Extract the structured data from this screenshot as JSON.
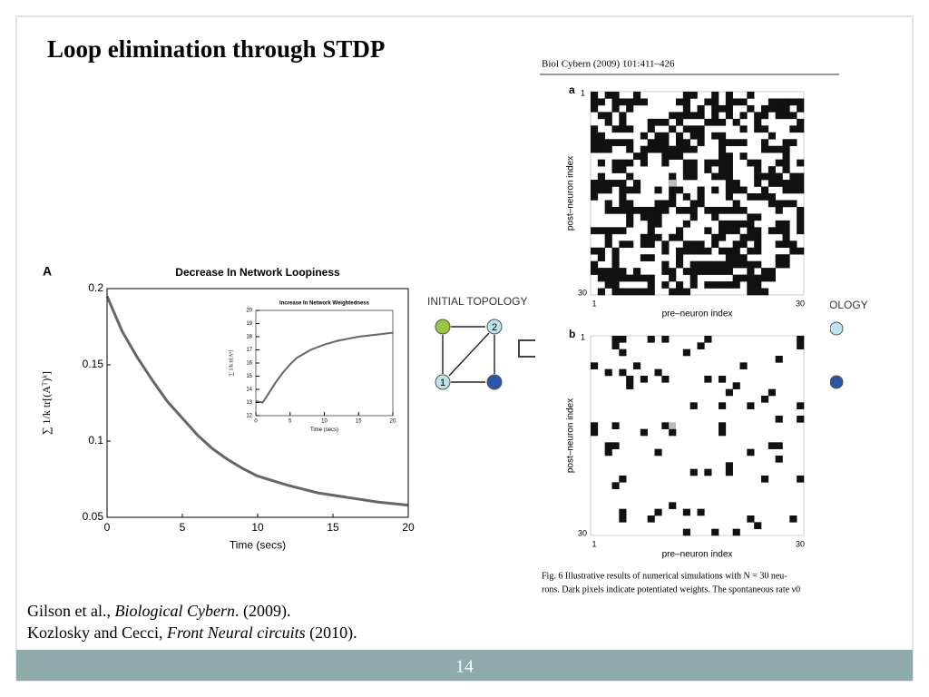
{
  "slide": {
    "title": "Loop elimination through STDP",
    "panel_label": "A",
    "journal_header": "Biol Cybern (2009) 101:411–426",
    "matrix_a": {
      "label": "a",
      "ylabel": "post–neuron index",
      "xlabel": "pre–neuron index",
      "tick_start": "1",
      "tick_end": "30",
      "tick_start_y": "1",
      "tick_end_y": "30"
    },
    "matrix_b": {
      "label": "b",
      "ylabel": "post–neuron index",
      "xlabel": "pre–neuron index",
      "tick_start": "1",
      "tick_end": "30",
      "tick_start_y": "1",
      "tick_end_y": "30"
    },
    "caption": [
      "Fig. 6  Illustrative results of numerical simulations with N = 30 neu-",
      "rons. Dark pixels indicate potentiated weights. The spontaneous rate ν0"
    ],
    "topology": {
      "title": "INITIAL TOPOLOGY",
      "node_1": "1",
      "node_2": "2",
      "cut_title": "OLOGY"
    },
    "references": [
      {
        "authors": "Gilson et al., ",
        "journal": "Biological Cybern",
        "rest": ". (2009)."
      },
      {
        "authors": "Kozlosky and Cecci, ",
        "journal": "Front Neural circuits",
        "rest": " (2010)."
      }
    ],
    "page_number": "14"
  },
  "chart_data": [
    {
      "type": "line",
      "title": "Decrease In Network Loopiness",
      "xlabel": "Time (secs)",
      "ylabel": "∑ 1/k tr[(Aᵀ)ᵏ]",
      "x": [
        0,
        1,
        2,
        3,
        4,
        5,
        6,
        7,
        8,
        9,
        10,
        12,
        14,
        16,
        18,
        20
      ],
      "series": [
        {
          "color": "#333333",
          "values": [
            0.195,
            0.172,
            0.155,
            0.14,
            0.126,
            0.115,
            0.104,
            0.095,
            0.088,
            0.082,
            0.077,
            0.071,
            0.066,
            0.063,
            0.06,
            0.058
          ]
        }
      ],
      "xlim": [
        0,
        20
      ],
      "ylim": [
        0.05,
        0.2
      ],
      "xticks": [
        0,
        5,
        10,
        15,
        20
      ],
      "yticks": [
        0.05,
        0.1,
        0.15,
        0.2
      ]
    },
    {
      "type": "line",
      "title": "Increase In Network Weightedness",
      "xlabel": "Time (secs)",
      "ylabel": "∑ 1/k tr[Aᵏ]",
      "x": [
        0,
        1,
        2,
        3,
        4,
        5,
        6,
        8,
        10,
        12,
        15,
        20
      ],
      "series": [
        {
          "color": "#333333",
          "values": [
            13.1,
            13.0,
            13.8,
            14.6,
            15.3,
            15.9,
            16.4,
            17.0,
            17.4,
            17.7,
            18.0,
            18.3
          ]
        }
      ],
      "xlim": [
        0,
        20
      ],
      "ylim": [
        12,
        20
      ],
      "xticks": [
        0,
        5,
        10,
        15,
        20
      ],
      "yticks": [
        12,
        13,
        14,
        15,
        16,
        17,
        18,
        19,
        20
      ]
    }
  ]
}
